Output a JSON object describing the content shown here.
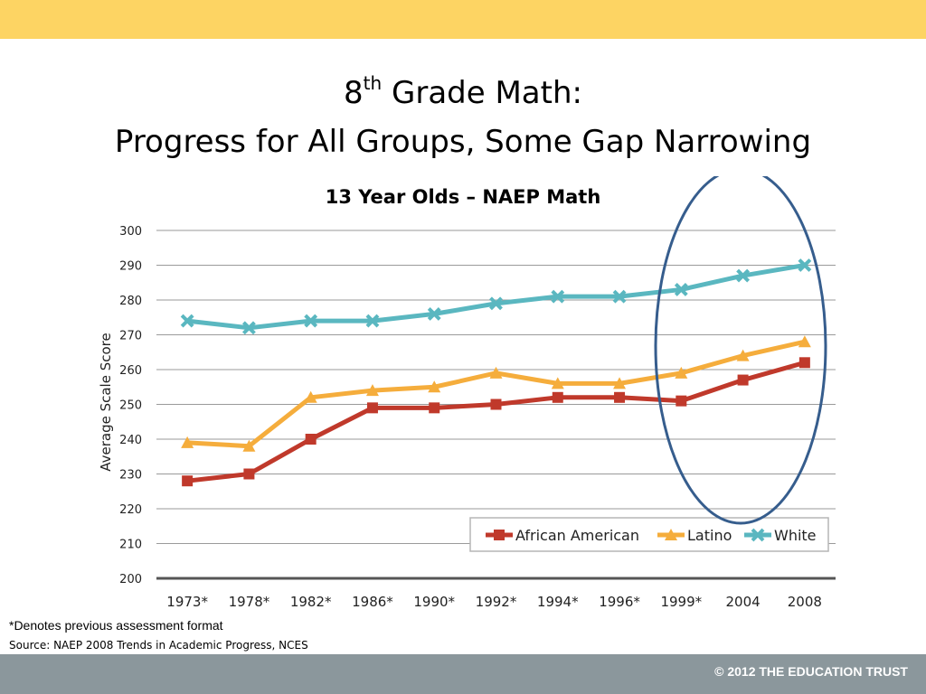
{
  "slide": {
    "title_num": "8",
    "title_sup": "th",
    "title_rest": " Grade Math:",
    "title_line2": "Progress for All Groups, Some Gap Narrowing"
  },
  "chart_data": {
    "type": "line",
    "title": "13 Year Olds – NAEP Math",
    "xlabel": "",
    "ylabel": "Average Scale Score",
    "categories": [
      "1973*",
      "1978*",
      "1982*",
      "1986*",
      "1990*",
      "1992*",
      "1994*",
      "1996*",
      "1999*",
      "2004",
      "2008"
    ],
    "ylim": [
      200,
      300
    ],
    "yticks": [
      200,
      210,
      220,
      230,
      240,
      250,
      260,
      270,
      280,
      290,
      300
    ],
    "grid": true,
    "legend_position": "bottom-right",
    "series": [
      {
        "name": "African American",
        "color": "#c0392b",
        "marker": "square",
        "values": [
          228,
          230,
          240,
          249,
          249,
          250,
          252,
          252,
          251,
          257,
          262
        ]
      },
      {
        "name": "Latino",
        "color": "#f5ad3c",
        "marker": "triangle",
        "values": [
          239,
          238,
          252,
          254,
          255,
          259,
          256,
          256,
          259,
          264,
          268
        ]
      },
      {
        "name": "White",
        "color": "#5ab7c0",
        "marker": "x",
        "values": [
          274,
          272,
          274,
          274,
          276,
          279,
          281,
          281,
          283,
          287,
          290
        ]
      }
    ],
    "highlight": {
      "shape": "ellipse",
      "color": "#365d8d",
      "categories": [
        "1999*",
        "2004",
        "2008"
      ]
    }
  },
  "notes": {
    "footnote": "*Denotes previous assessment format",
    "source": "Source: NAEP 2008 Trends in Academic Progress, NCES"
  },
  "footer": {
    "copyright": "© 2012 THE EDUCATION TRUST"
  }
}
